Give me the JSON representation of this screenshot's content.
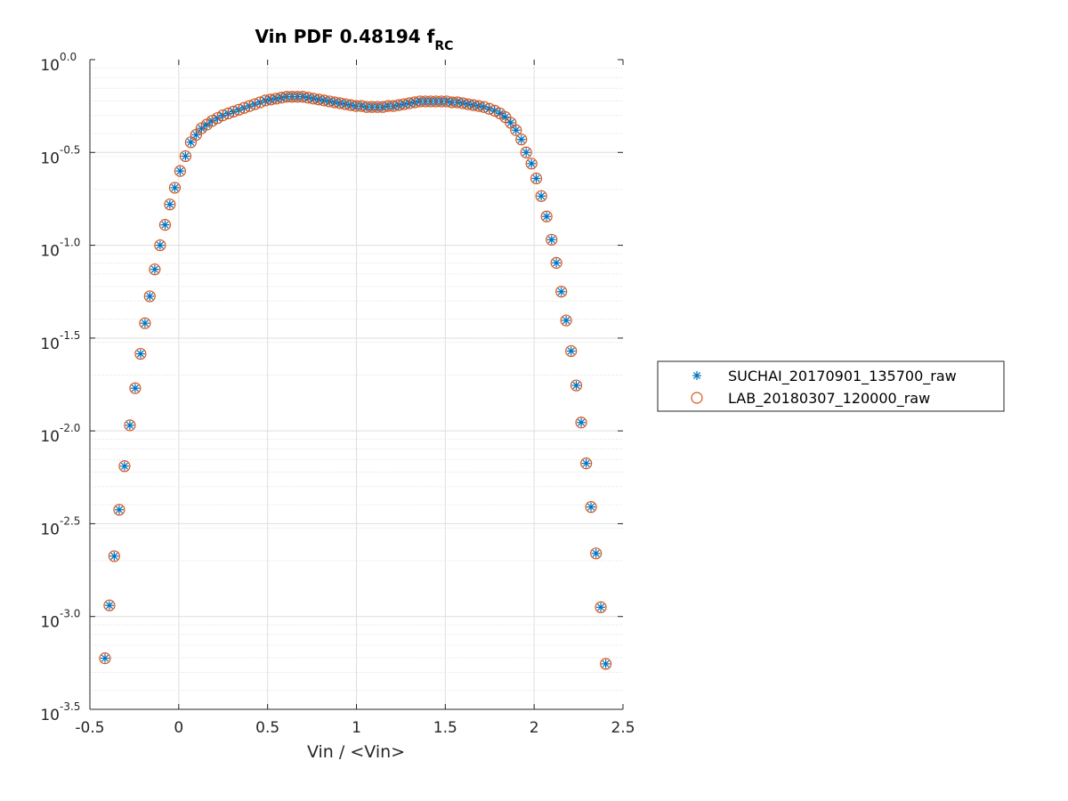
{
  "chart_data": {
    "type": "scatter",
    "title": "Vin PDF 0.48194 f",
    "title_subscript": "RC",
    "xlabel": "Vin / <Vin>",
    "ylabel": "",
    "xlim": [
      -0.5,
      2.5
    ],
    "ylim_log10": [
      -3.5,
      0.0
    ],
    "yscale": "log",
    "grid": true,
    "legend_position": "outside-right",
    "x_ticks": [
      "-0.5",
      "0",
      "0.5",
      "1",
      "1.5",
      "2",
      "2.5"
    ],
    "y_ticks": [
      {
        "base": "10",
        "exp": "0.0"
      },
      {
        "base": "10",
        "exp": "-0.5"
      },
      {
        "base": "10",
        "exp": "-1.0"
      },
      {
        "base": "10",
        "exp": "-1.5"
      },
      {
        "base": "10",
        "exp": "-2.0"
      },
      {
        "base": "10",
        "exp": "-2.5"
      },
      {
        "base": "10",
        "exp": "-3.0"
      },
      {
        "base": "10",
        "exp": "-3.5"
      }
    ],
    "series": [
      {
        "name": "SUCHAI_20170901_135700_raw",
        "marker": "asterisk",
        "color": "#0072BD"
      },
      {
        "name": "LAB_20180307_120000_raw",
        "marker": "circle",
        "color": "#D95319"
      }
    ],
    "x": [
      -0.415,
      -0.39,
      -0.363,
      -0.335,
      -0.305,
      -0.275,
      -0.245,
      -0.215,
      -0.19,
      -0.163,
      -0.135,
      -0.105,
      -0.077,
      -0.05,
      -0.022,
      0.008,
      0.038,
      0.068,
      0.098,
      0.128,
      0.158,
      0.188,
      0.218,
      0.248,
      0.278,
      0.308,
      0.338,
      0.368,
      0.398,
      0.428,
      0.458,
      0.488,
      0.518,
      0.548,
      0.578,
      0.608,
      0.638,
      0.668,
      0.698,
      0.728,
      0.758,
      0.788,
      0.818,
      0.848,
      0.878,
      0.908,
      0.938,
      0.968,
      0.998,
      1.028,
      1.058,
      1.088,
      1.118,
      1.148,
      1.178,
      1.208,
      1.238,
      1.268,
      1.298,
      1.328,
      1.358,
      1.388,
      1.418,
      1.448,
      1.478,
      1.508,
      1.538,
      1.568,
      1.598,
      1.628,
      1.658,
      1.688,
      1.718,
      1.748,
      1.778,
      1.808,
      1.838,
      1.868,
      1.898,
      1.928,
      1.955,
      1.985,
      2.012,
      2.04,
      2.07,
      2.098,
      2.125,
      2.153,
      2.18,
      2.208,
      2.237,
      2.265,
      2.293,
      2.32,
      2.348,
      2.375,
      2.403
    ],
    "log10_y": [
      -3.225,
      -2.94,
      -2.675,
      -2.425,
      -2.19,
      -1.97,
      -1.77,
      -1.585,
      -1.42,
      -1.275,
      -1.13,
      -1.0,
      -0.89,
      -0.78,
      -0.69,
      -0.6,
      -0.52,
      -0.445,
      -0.405,
      -0.37,
      -0.35,
      -0.33,
      -0.315,
      -0.3,
      -0.29,
      -0.28,
      -0.27,
      -0.26,
      -0.25,
      -0.24,
      -0.23,
      -0.22,
      -0.215,
      -0.21,
      -0.205,
      -0.2,
      -0.2,
      -0.2,
      -0.2,
      -0.205,
      -0.21,
      -0.215,
      -0.22,
      -0.225,
      -0.23,
      -0.235,
      -0.24,
      -0.245,
      -0.25,
      -0.25,
      -0.255,
      -0.255,
      -0.255,
      -0.255,
      -0.25,
      -0.25,
      -0.245,
      -0.24,
      -0.235,
      -0.23,
      -0.225,
      -0.225,
      -0.225,
      -0.225,
      -0.225,
      -0.225,
      -0.23,
      -0.23,
      -0.235,
      -0.24,
      -0.245,
      -0.25,
      -0.255,
      -0.265,
      -0.275,
      -0.29,
      -0.31,
      -0.34,
      -0.38,
      -0.43,
      -0.5,
      -0.56,
      -0.64,
      -0.735,
      -0.845,
      -0.97,
      -1.095,
      -1.25,
      -1.405,
      -1.57,
      -1.755,
      -1.955,
      -2.175,
      -2.41,
      -2.66,
      -2.95,
      -3.255
    ]
  }
}
